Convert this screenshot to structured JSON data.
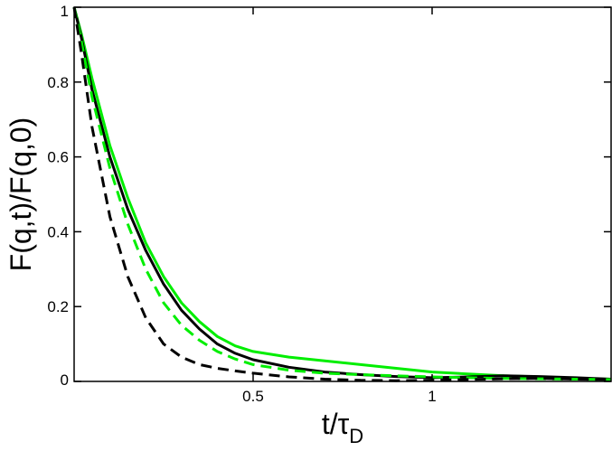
{
  "chart_data": {
    "type": "line",
    "xlabel": "t/τ",
    "xlabel_sub": "D",
    "ylabel": "F(q,t)/F(q,0)",
    "xlim": [
      0.0,
      1.5
    ],
    "ylim": [
      0.0,
      1.0
    ],
    "grid": false,
    "legend": "none",
    "x_ticks": [
      {
        "value": 0.5,
        "label": "0.5"
      },
      {
        "value": 1.0,
        "label": "1"
      }
    ],
    "y_ticks": [
      {
        "value": 0.0,
        "label": "0"
      },
      {
        "value": 0.2,
        "label": "0.2"
      },
      {
        "value": 0.4,
        "label": "0.4"
      },
      {
        "value": 0.6,
        "label": "0.6"
      },
      {
        "value": 0.8,
        "label": "0.8"
      },
      {
        "value": 1.0,
        "label": "1"
      }
    ],
    "series": [
      {
        "color": "#00ee00",
        "style": "solid",
        "x": [
          0.0,
          0.02,
          0.05,
          0.1,
          0.15,
          0.2,
          0.25,
          0.3,
          0.35,
          0.4,
          0.45,
          0.5,
          0.6,
          0.7,
          0.8,
          0.9,
          1.0,
          1.1,
          1.2,
          1.3,
          1.4,
          1.5
        ],
        "values": [
          1.0,
          0.93,
          0.81,
          0.63,
          0.49,
          0.37,
          0.28,
          0.21,
          0.16,
          0.12,
          0.095,
          0.08,
          0.065,
          0.055,
          0.045,
          0.035,
          0.025,
          0.02,
          0.015,
          0.012,
          0.008,
          0.006
        ]
      },
      {
        "color": "#000000",
        "style": "solid",
        "x": [
          0.0,
          0.02,
          0.05,
          0.1,
          0.15,
          0.2,
          0.25,
          0.3,
          0.35,
          0.4,
          0.45,
          0.5,
          0.6,
          0.7,
          0.8,
          0.9,
          1.0,
          1.1,
          1.2,
          1.3,
          1.4,
          1.5
        ],
        "values": [
          1.0,
          0.92,
          0.78,
          0.6,
          0.46,
          0.35,
          0.26,
          0.19,
          0.14,
          0.1,
          0.075,
          0.058,
          0.038,
          0.025,
          0.018,
          0.013,
          0.01,
          0.012,
          0.015,
          0.013,
          0.01,
          0.006
        ]
      },
      {
        "color": "#00ee00",
        "style": "dashed",
        "x": [
          0.0,
          0.02,
          0.05,
          0.1,
          0.15,
          0.2,
          0.25,
          0.3,
          0.35,
          0.4,
          0.45,
          0.5,
          0.6,
          0.7,
          0.8,
          0.9,
          1.0,
          1.1,
          1.2,
          1.3,
          1.4,
          1.5
        ],
        "values": [
          1.0,
          0.91,
          0.76,
          0.57,
          0.42,
          0.3,
          0.21,
          0.15,
          0.11,
          0.08,
          0.06,
          0.045,
          0.03,
          0.022,
          0.018,
          0.015,
          0.012,
          0.01,
          0.008,
          0.007,
          0.006,
          0.005
        ]
      },
      {
        "color": "#000000",
        "style": "dashed",
        "x": [
          0.0,
          0.02,
          0.05,
          0.1,
          0.15,
          0.2,
          0.25,
          0.3,
          0.35,
          0.4,
          0.45,
          0.5,
          0.6,
          0.7,
          0.8,
          0.9,
          1.0,
          1.1,
          1.2,
          1.3,
          1.4,
          1.5
        ],
        "values": [
          1.0,
          0.88,
          0.68,
          0.44,
          0.28,
          0.17,
          0.1,
          0.065,
          0.045,
          0.035,
          0.028,
          0.022,
          0.012,
          0.006,
          0.003,
          0.002,
          0.003,
          0.005,
          0.007,
          0.008,
          0.006,
          0.005
        ]
      }
    ]
  }
}
